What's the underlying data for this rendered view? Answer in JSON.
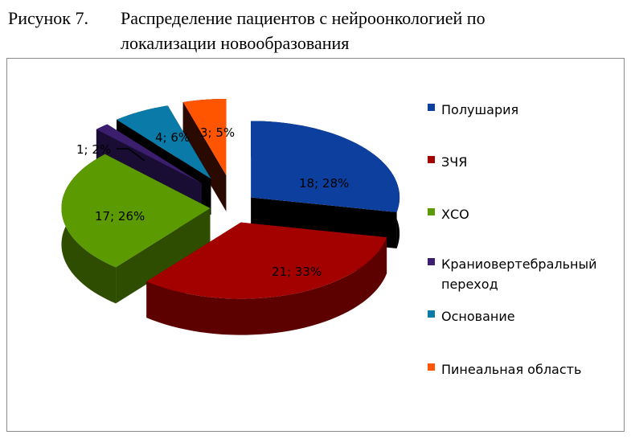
{
  "figure_label": "Рисунок 7.",
  "chart_data": {
    "type": "pie",
    "title_line1": "Распределение пациентов с нейроонкологией  по",
    "title_line2": "локализации новообразования",
    "categories": [
      "Полушария",
      "ЗЧЯ",
      "ХСО",
      "Краниовертебральный переход",
      "Основание",
      "Пинеальная область"
    ],
    "values": [
      18,
      21,
      17,
      1,
      4,
      3
    ],
    "data_labels": [
      "18; 28%",
      "21; 33%",
      "17; 26%",
      "1; 2%",
      "4; 6%",
      "3; 5%"
    ],
    "colors": [
      "#0d3f9f",
      "#a30000",
      "#5b9a00",
      "#3b1f6e",
      "#0a7ba8",
      "#ff5500"
    ],
    "side_colors": [
      "#000000",
      "#5c0000",
      "#2f4d00",
      "#1a0d33",
      "#000000",
      "#2a0a00"
    ],
    "legend_position": "right"
  }
}
